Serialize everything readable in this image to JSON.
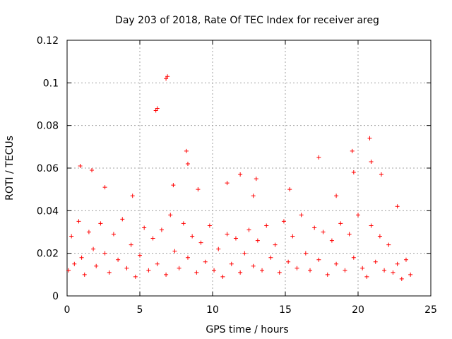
{
  "chart_data": {
    "type": "scatter",
    "title": "Day 203 of 2018, Rate Of TEC Index for receiver areg",
    "xlabel": "GPS time / hours",
    "ylabel": "ROTI / TECUs",
    "xlim": [
      0,
      25
    ],
    "ylim": [
      0,
      0.12
    ],
    "xticks": [
      0,
      5,
      10,
      15,
      20,
      25
    ],
    "yticks": [
      0,
      0.02,
      0.04,
      0.06,
      0.08,
      0.1,
      0.12
    ],
    "xtick_labels": [
      "0",
      "5",
      "10",
      "15",
      "20",
      "25"
    ],
    "ytick_labels": [
      "0",
      "0.02",
      "0.04",
      "0.06",
      "0.08",
      "0.1",
      "0.12"
    ],
    "grid": true,
    "marker": "+",
    "color": "#ff0000",
    "series": [
      {
        "x": [
          0.1,
          0.3,
          0.5,
          0.8,
          1.0,
          1.2,
          1.5,
          1.8,
          2.0,
          2.3,
          2.6,
          2.9,
          3.2,
          3.5,
          3.8,
          4.1,
          4.4,
          4.7,
          5.0,
          5.3,
          5.6,
          5.9,
          6.2,
          6.5,
          6.8,
          7.1,
          7.4,
          7.7,
          8.0,
          8.3,
          8.6,
          8.9,
          9.2,
          9.5,
          9.8,
          10.1,
          10.4,
          10.7,
          11.0,
          11.3,
          11.6,
          11.9,
          12.2,
          12.5,
          12.8,
          13.1,
          13.4,
          13.7,
          14.0,
          14.3,
          14.6,
          14.9,
          15.2,
          15.5,
          15.8,
          16.1,
          16.4,
          16.7,
          17.0,
          17.3,
          17.6,
          17.9,
          18.2,
          18.5,
          18.8,
          19.1,
          19.4,
          19.7,
          20.0,
          20.3,
          20.6,
          20.9,
          21.2,
          21.5,
          21.8,
          22.1,
          22.4,
          22.7,
          23.0,
          23.3,
          23.6,
          0.9,
          1.7,
          2.6,
          4.5,
          6.1,
          6.2,
          6.8,
          6.9,
          7.3,
          8.2,
          8.3,
          9.0,
          11.0,
          11.9,
          12.8,
          13.0,
          15.3,
          17.3,
          18.5,
          19.6,
          19.7,
          20.8,
          20.9,
          21.6,
          22.7
        ],
        "y": [
          0.012,
          0.028,
          0.015,
          0.035,
          0.018,
          0.01,
          0.03,
          0.022,
          0.014,
          0.034,
          0.02,
          0.011,
          0.029,
          0.017,
          0.036,
          0.013,
          0.024,
          0.009,
          0.019,
          0.032,
          0.012,
          0.027,
          0.015,
          0.031,
          0.01,
          0.038,
          0.021,
          0.013,
          0.034,
          0.018,
          0.028,
          0.011,
          0.025,
          0.016,
          0.033,
          0.012,
          0.022,
          0.009,
          0.029,
          0.015,
          0.027,
          0.011,
          0.02,
          0.031,
          0.014,
          0.026,
          0.012,
          0.033,
          0.018,
          0.024,
          0.011,
          0.035,
          0.016,
          0.028,
          0.013,
          0.038,
          0.02,
          0.012,
          0.032,
          0.017,
          0.03,
          0.01,
          0.026,
          0.015,
          0.034,
          0.012,
          0.029,
          0.018,
          0.038,
          0.013,
          0.009,
          0.033,
          0.016,
          0.028,
          0.012,
          0.024,
          0.011,
          0.015,
          0.008,
          0.017,
          0.01,
          0.061,
          0.059,
          0.051,
          0.047,
          0.087,
          0.088,
          0.102,
          0.103,
          0.052,
          0.068,
          0.062,
          0.05,
          0.053,
          0.057,
          0.047,
          0.055,
          0.05,
          0.065,
          0.047,
          0.068,
          0.058,
          0.074,
          0.063,
          0.057,
          0.042
        ]
      }
    ]
  }
}
